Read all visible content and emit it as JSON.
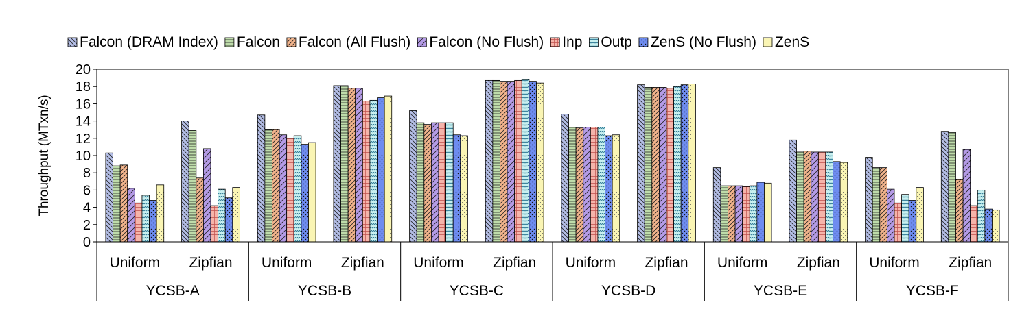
{
  "chart_data": {
    "type": "bar",
    "title": "",
    "xlabel": "",
    "ylabel": "Throughput (MTxn/s)",
    "ylim": [
      0,
      20
    ],
    "yticks": [
      0,
      2,
      4,
      6,
      8,
      10,
      12,
      14,
      16,
      18,
      20
    ],
    "grid": false,
    "legend_position": "top",
    "groups": [
      "YCSB-A",
      "YCSB-B",
      "YCSB-C",
      "YCSB-D",
      "YCSB-E",
      "YCSB-F"
    ],
    "subcategories": [
      "Uniform",
      "Zipfian"
    ],
    "series": [
      {
        "name": "Falcon (DRAM Index)",
        "color": "#b4bee6",
        "pattern": "diag-back",
        "values": [
          10.3,
          14.0,
          14.7,
          18.1,
          15.2,
          18.7,
          14.8,
          18.2,
          8.6,
          11.8,
          9.8,
          12.8
        ]
      },
      {
        "name": "Falcon",
        "color": "#bedcaa",
        "pattern": "horizontal",
        "values": [
          8.8,
          12.9,
          13.0,
          18.1,
          13.8,
          18.7,
          13.3,
          17.9,
          6.5,
          10.4,
          8.6,
          12.7
        ]
      },
      {
        "name": "Falcon (All Flush)",
        "color": "#f2b48c",
        "pattern": "diag-fwd",
        "values": [
          8.9,
          7.4,
          13.0,
          17.8,
          13.6,
          18.6,
          13.2,
          17.9,
          6.5,
          10.5,
          8.6,
          7.2
        ]
      },
      {
        "name": "Falcon (No Flush)",
        "color": "#b49be6",
        "pattern": "diag-wide",
        "values": [
          6.2,
          10.8,
          12.4,
          17.8,
          13.8,
          18.6,
          13.3,
          17.9,
          6.5,
          10.4,
          6.1,
          10.7
        ]
      },
      {
        "name": "Inp",
        "color": "#f5b4aa",
        "pattern": "grid",
        "values": [
          4.5,
          4.2,
          12.0,
          16.3,
          13.8,
          18.7,
          13.3,
          17.8,
          6.4,
          10.4,
          4.5,
          4.2
        ]
      },
      {
        "name": "Outp",
        "color": "#c8f0f0",
        "pattern": "zigzag",
        "values": [
          5.4,
          6.1,
          12.3,
          16.4,
          13.8,
          18.8,
          13.3,
          18.0,
          6.5,
          10.4,
          5.5,
          6.0
        ]
      },
      {
        "name": "ZenS (No Flush)",
        "color": "#6e8cf0",
        "pattern": "dots-dark",
        "values": [
          4.8,
          5.1,
          11.3,
          16.7,
          12.4,
          18.6,
          12.3,
          18.2,
          6.9,
          9.3,
          4.8,
          3.8
        ]
      },
      {
        "name": "ZenS",
        "color": "#faf5b4",
        "pattern": "dots-light",
        "values": [
          6.6,
          6.3,
          11.5,
          16.9,
          12.3,
          18.4,
          12.4,
          18.3,
          6.8,
          9.2,
          6.3,
          3.7
        ]
      }
    ]
  }
}
